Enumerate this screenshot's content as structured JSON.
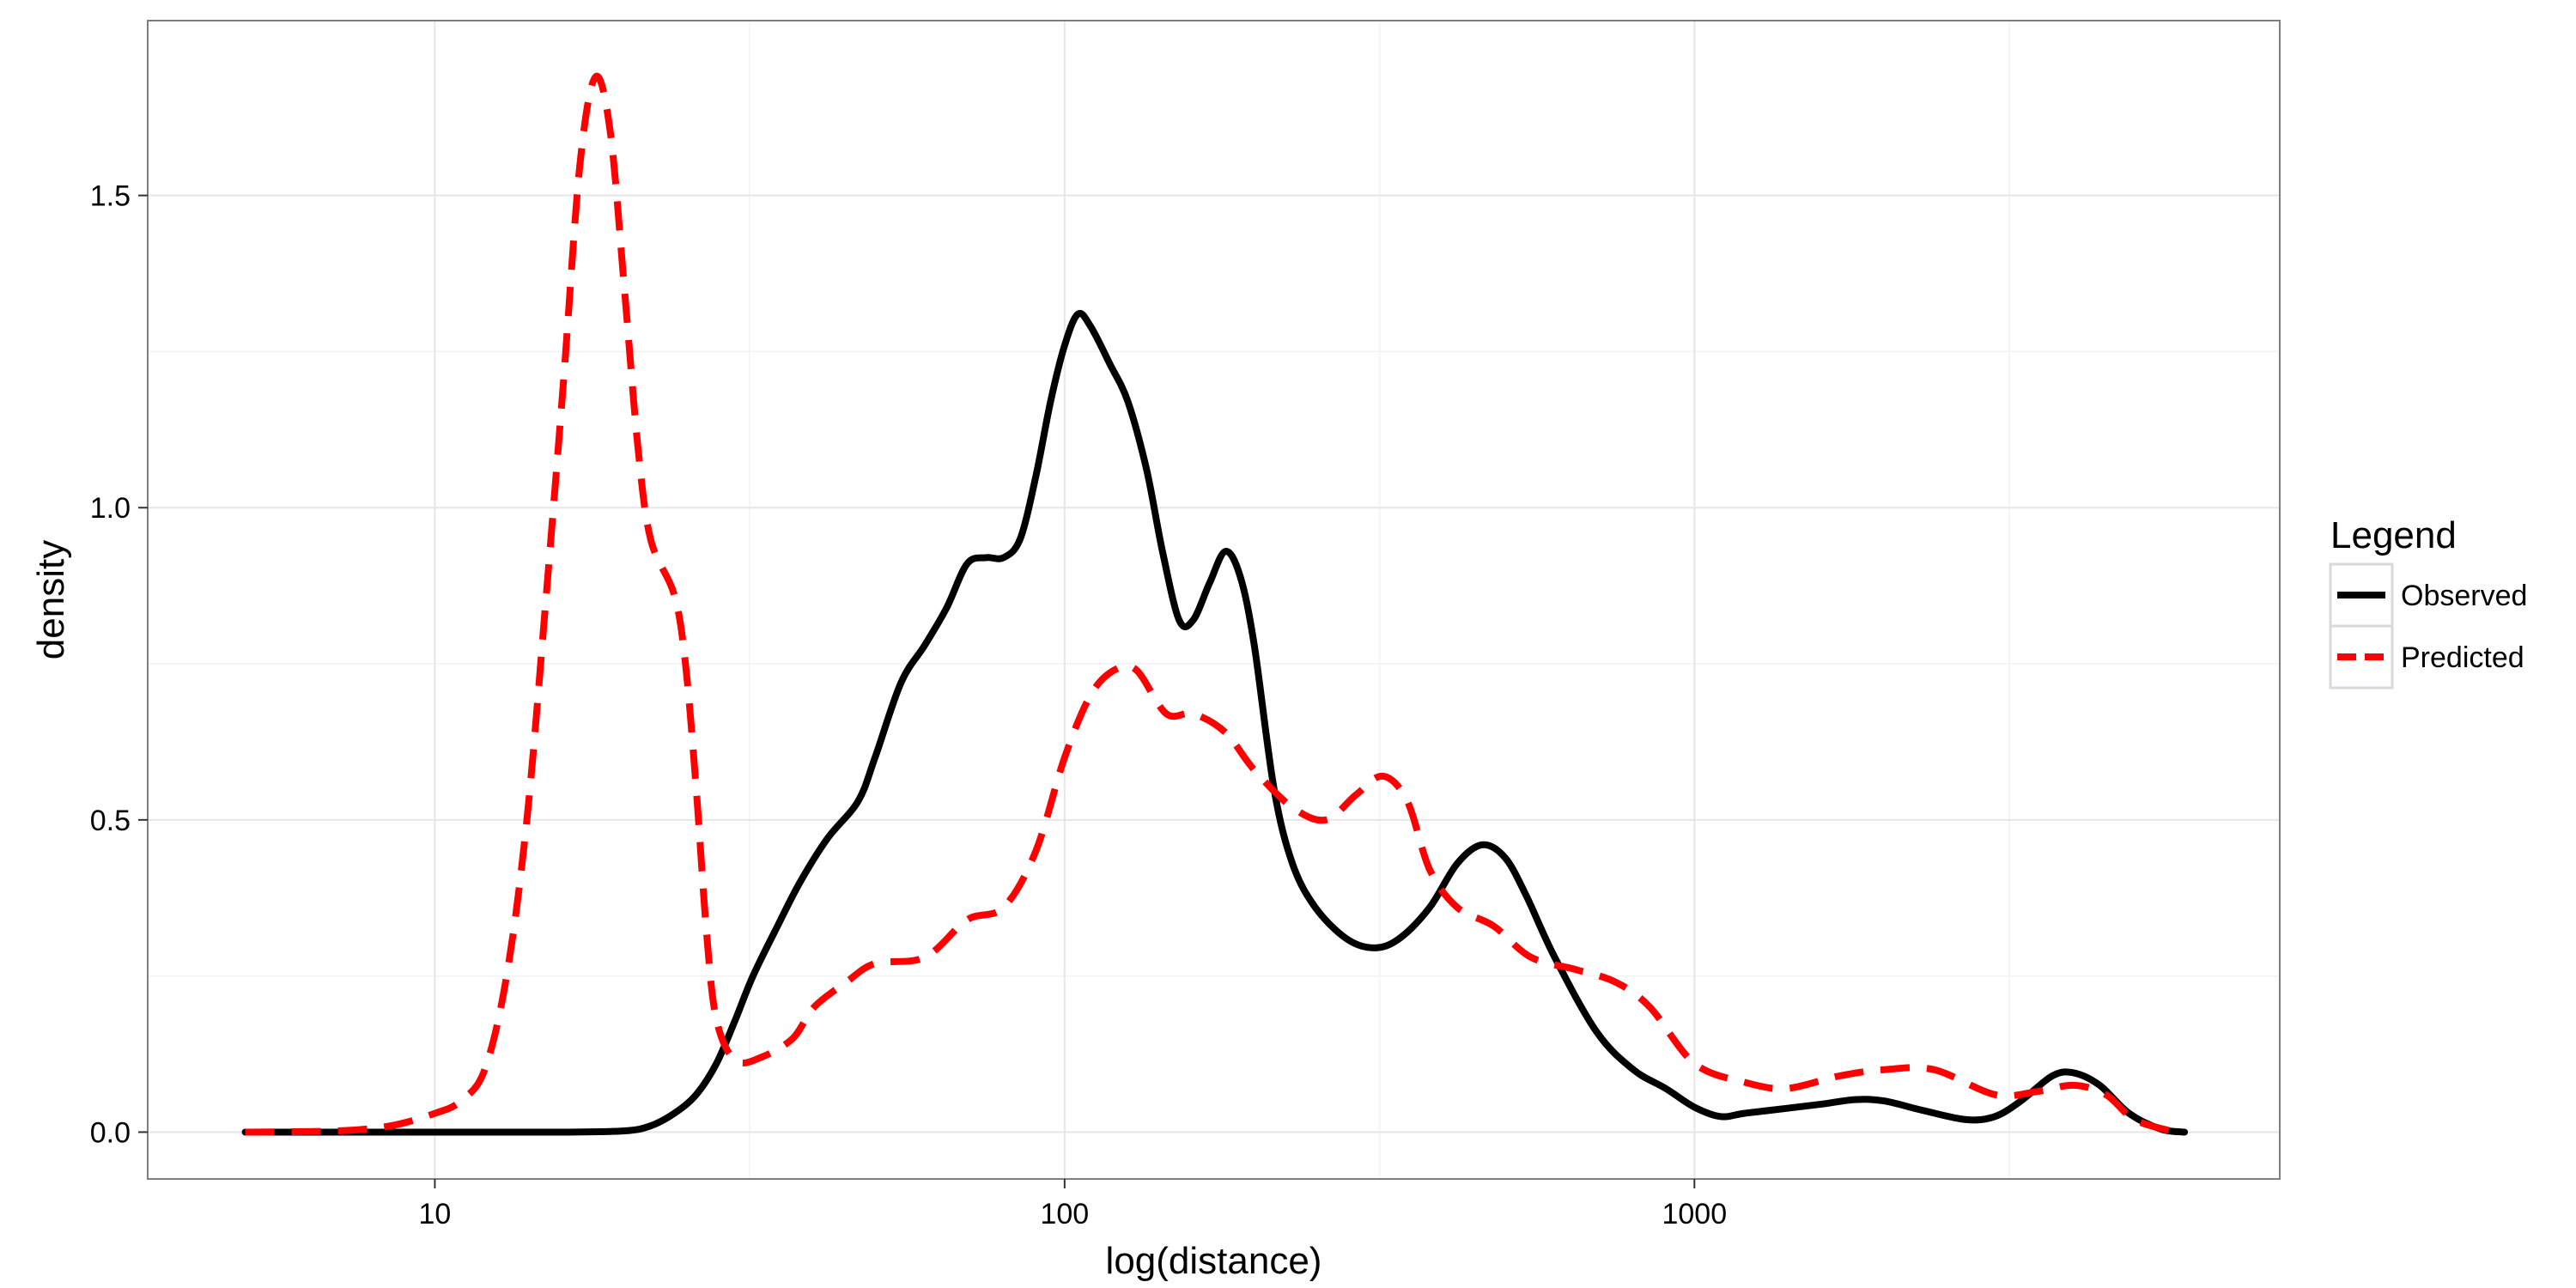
{
  "chart_data": {
    "type": "line",
    "xlabel": "log(distance)",
    "ylabel": "density",
    "x_scale": "log10",
    "xlim": [
      3.5,
      8500
    ],
    "ylim": [
      -0.075,
      1.78
    ],
    "x_ticks": [
      10,
      100,
      1000
    ],
    "x_tick_labels": [
      "10",
      "100",
      "1000"
    ],
    "y_ticks": [
      0,
      0.5,
      1,
      1.5
    ],
    "y_tick_labels": [
      "0.0",
      "0.5",
      "1.0",
      "1.5"
    ],
    "grid": true,
    "legend_title": "Legend",
    "legend_position": "right",
    "series": [
      {
        "name": "Observed",
        "color": "#000000",
        "dash": "solid",
        "points": [
          [
            5,
            0
          ],
          [
            8,
            0
          ],
          [
            12,
            0
          ],
          [
            16,
            0
          ],
          [
            20,
            0.002
          ],
          [
            22,
            0.01
          ],
          [
            24,
            0.03
          ],
          [
            26,
            0.06
          ],
          [
            28,
            0.11
          ],
          [
            30,
            0.18
          ],
          [
            32,
            0.25
          ],
          [
            35,
            0.33
          ],
          [
            38,
            0.4
          ],
          [
            42,
            0.47
          ],
          [
            47,
            0.53
          ],
          [
            50,
            0.6
          ],
          [
            55,
            0.72
          ],
          [
            60,
            0.78
          ],
          [
            65,
            0.84
          ],
          [
            70,
            0.91
          ],
          [
            75,
            0.92
          ],
          [
            80,
            0.92
          ],
          [
            85,
            0.95
          ],
          [
            90,
            1.05
          ],
          [
            95,
            1.17
          ],
          [
            100,
            1.26
          ],
          [
            105,
            1.31
          ],
          [
            110,
            1.29
          ],
          [
            118,
            1.23
          ],
          [
            126,
            1.17
          ],
          [
            135,
            1.06
          ],
          [
            143,
            0.93
          ],
          [
            152,
            0.82
          ],
          [
            160,
            0.82
          ],
          [
            170,
            0.88
          ],
          [
            180,
            0.93
          ],
          [
            190,
            0.89
          ],
          [
            200,
            0.78
          ],
          [
            215,
            0.55
          ],
          [
            230,
            0.43
          ],
          [
            250,
            0.36
          ],
          [
            280,
            0.31
          ],
          [
            310,
            0.295
          ],
          [
            340,
            0.31
          ],
          [
            380,
            0.36
          ],
          [
            420,
            0.43
          ],
          [
            460,
            0.46
          ],
          [
            500,
            0.44
          ],
          [
            540,
            0.38
          ],
          [
            600,
            0.28
          ],
          [
            700,
            0.16
          ],
          [
            800,
            0.1
          ],
          [
            900,
            0.07
          ],
          [
            1000,
            0.04
          ],
          [
            1100,
            0.025
          ],
          [
            1200,
            0.03
          ],
          [
            1400,
            0.038
          ],
          [
            1600,
            0.045
          ],
          [
            1800,
            0.052
          ],
          [
            2000,
            0.05
          ],
          [
            2300,
            0.035
          ],
          [
            2700,
            0.02
          ],
          [
            3000,
            0.025
          ],
          [
            3300,
            0.05
          ],
          [
            3700,
            0.09
          ],
          [
            4000,
            0.095
          ],
          [
            4400,
            0.075
          ],
          [
            4900,
            0.03
          ],
          [
            5500,
            0.005
          ],
          [
            6000,
            0
          ]
        ]
      },
      {
        "name": "Predicted",
        "color": "#ff0000",
        "dash": "dashed",
        "points": [
          [
            5,
            0
          ],
          [
            7,
            0.002
          ],
          [
            8.5,
            0.01
          ],
          [
            10,
            0.03
          ],
          [
            11,
            0.05
          ],
          [
            12,
            0.1
          ],
          [
            13,
            0.25
          ],
          [
            14,
            0.5
          ],
          [
            15,
            0.85
          ],
          [
            16,
            1.2
          ],
          [
            17,
            1.55
          ],
          [
            18,
            1.69
          ],
          [
            19,
            1.6
          ],
          [
            20,
            1.35
          ],
          [
            21,
            1.1
          ],
          [
            22,
            0.95
          ],
          [
            24,
            0.86
          ],
          [
            25,
            0.75
          ],
          [
            26,
            0.55
          ],
          [
            27,
            0.32
          ],
          [
            28,
            0.18
          ],
          [
            30,
            0.115
          ],
          [
            33,
            0.12
          ],
          [
            37,
            0.15
          ],
          [
            40,
            0.2
          ],
          [
            45,
            0.24
          ],
          [
            50,
            0.27
          ],
          [
            60,
            0.28
          ],
          [
            70,
            0.34
          ],
          [
            80,
            0.36
          ],
          [
            90,
            0.45
          ],
          [
            100,
            0.6
          ],
          [
            110,
            0.7
          ],
          [
            120,
            0.74
          ],
          [
            130,
            0.74
          ],
          [
            145,
            0.67
          ],
          [
            160,
            0.67
          ],
          [
            180,
            0.64
          ],
          [
            200,
            0.58
          ],
          [
            230,
            0.52
          ],
          [
            260,
            0.5
          ],
          [
            290,
            0.54
          ],
          [
            320,
            0.57
          ],
          [
            350,
            0.53
          ],
          [
            380,
            0.42
          ],
          [
            420,
            0.36
          ],
          [
            480,
            0.33
          ],
          [
            550,
            0.28
          ],
          [
            650,
            0.26
          ],
          [
            750,
            0.24
          ],
          [
            850,
            0.2
          ],
          [
            1000,
            0.11
          ],
          [
            1200,
            0.08
          ],
          [
            1400,
            0.07
          ],
          [
            1700,
            0.09
          ],
          [
            2000,
            0.1
          ],
          [
            2400,
            0.1
          ],
          [
            3000,
            0.06
          ],
          [
            3500,
            0.065
          ],
          [
            4000,
            0.075
          ],
          [
            4500,
            0.06
          ],
          [
            5000,
            0.02
          ],
          [
            5800,
            0
          ]
        ]
      }
    ]
  }
}
